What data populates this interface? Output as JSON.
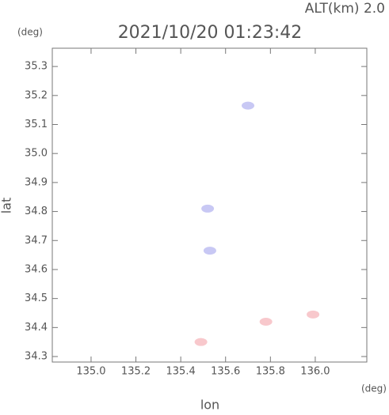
{
  "chart_data": {
    "type": "scatter",
    "title": "2021/10/20 01:23:42",
    "subtitle": "ALT(km) 2.0",
    "y_unit": "(deg)",
    "x_unit": "(deg)",
    "x_label": "lon",
    "y_label": "lat",
    "xlim": [
      134.827,
      136.23
    ],
    "ylim": [
      34.281,
      35.363
    ],
    "xticks": [
      {
        "value": 135,
        "label": "135.0"
      },
      135.2,
      135.4,
      135.6,
      135.8,
      {
        "value": 136,
        "label": "136.0"
      }
    ],
    "yticks": [
      34.3,
      34.4,
      34.5,
      34.6,
      34.7,
      34.8,
      34.9,
      {
        "value": 35,
        "label": "35.0"
      },
      35.1,
      35.2,
      35.3
    ],
    "series": [
      {
        "color": "#c8c8f4",
        "x": [
          135.7,
          135.52,
          135.53
        ],
        "y": [
          35.165,
          34.81,
          34.665
        ]
      },
      {
        "color": "#f8c8cc",
        "x": [
          135.49,
          135.78,
          135.99
        ],
        "y": [
          34.35,
          34.42,
          34.445
        ]
      }
    ]
  }
}
